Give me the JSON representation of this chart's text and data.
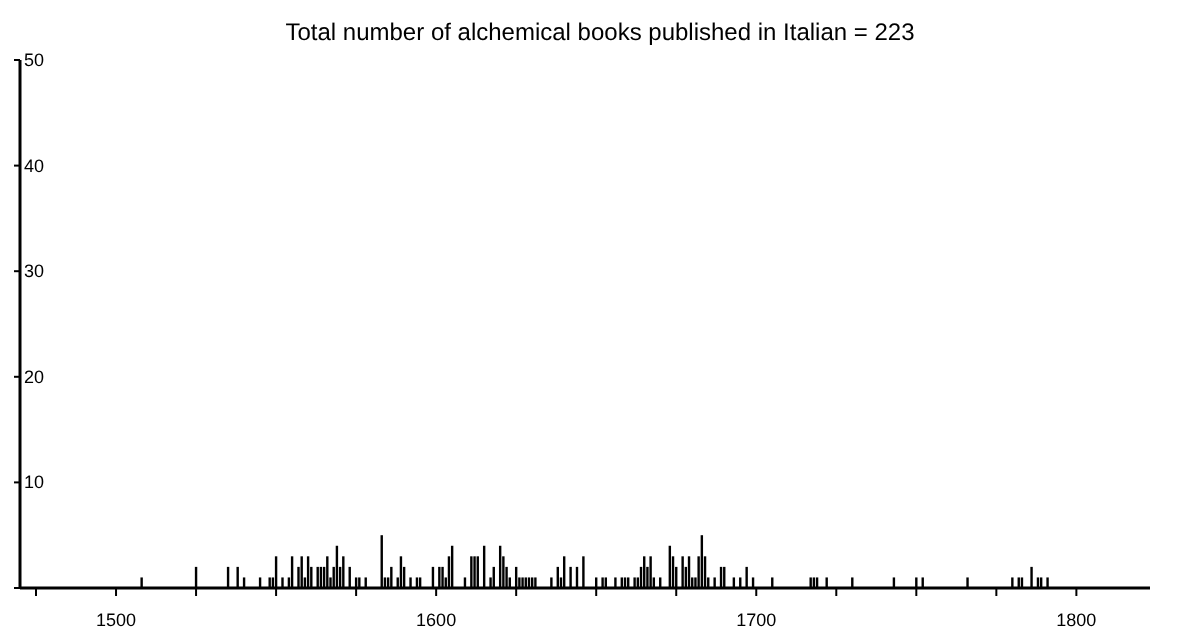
{
  "chart_data": {
    "type": "bar",
    "title": "Total number of alchemical books published in Italian  = 223",
    "x": [
      1508,
      1525,
      1535,
      1538,
      1540,
      1545,
      1548,
      1549,
      1550,
      1552,
      1554,
      1555,
      1557,
      1558,
      1559,
      1560,
      1561,
      1563,
      1564,
      1565,
      1566,
      1567,
      1568,
      1569,
      1570,
      1571,
      1573,
      1575,
      1576,
      1578,
      1583,
      1584,
      1585,
      1586,
      1588,
      1589,
      1590,
      1592,
      1594,
      1595,
      1599,
      1601,
      1602,
      1603,
      1604,
      1605,
      1609,
      1611,
      1612,
      1613,
      1615,
      1617,
      1618,
      1620,
      1621,
      1622,
      1623,
      1625,
      1626,
      1627,
      1628,
      1629,
      1630,
      1631,
      1636,
      1638,
      1639,
      1640,
      1642,
      1644,
      1646,
      1650,
      1652,
      1653,
      1656,
      1658,
      1659,
      1660,
      1662,
      1663,
      1664,
      1665,
      1666,
      1667,
      1668,
      1670,
      1673,
      1674,
      1675,
      1677,
      1678,
      1679,
      1680,
      1681,
      1682,
      1683,
      1684,
      1685,
      1687,
      1689,
      1690,
      1693,
      1695,
      1697,
      1699,
      1705,
      1717,
      1718,
      1719,
      1722,
      1730,
      1743,
      1750,
      1752,
      1766,
      1780,
      1782,
      1783,
      1786,
      1788,
      1789,
      1791
    ],
    "values": [
      1,
      2,
      2,
      2,
      1,
      1,
      1,
      1,
      3,
      1,
      1,
      3,
      2,
      3,
      1,
      3,
      2,
      2,
      2,
      2,
      3,
      1,
      2,
      4,
      2,
      3,
      2,
      1,
      1,
      1,
      5,
      1,
      1,
      2,
      1,
      3,
      2,
      1,
      1,
      1,
      2,
      2,
      2,
      1,
      3,
      4,
      1,
      3,
      3,
      3,
      4,
      1,
      2,
      4,
      3,
      2,
      1,
      2,
      1,
      1,
      1,
      1,
      1,
      1,
      1,
      2,
      1,
      3,
      2,
      2,
      3,
      1,
      1,
      1,
      1,
      1,
      1,
      1,
      1,
      1,
      2,
      3,
      2,
      3,
      1,
      1,
      4,
      3,
      2,
      3,
      2,
      3,
      1,
      1,
      3,
      5,
      3,
      1,
      1,
      2,
      2,
      1,
      1,
      2,
      1,
      1,
      1,
      1,
      1,
      1,
      1,
      1,
      1,
      1,
      1,
      1,
      1,
      1,
      2,
      1,
      1,
      1
    ],
    "color": "#000000",
    "xlim": [
      1470,
      1823
    ],
    "xticks": [
      {
        "value": 1475,
        "label": null
      },
      {
        "value": 1500,
        "label": "1500"
      },
      {
        "value": 1525,
        "label": null
      },
      {
        "value": 1550,
        "label": null
      },
      {
        "value": 1575,
        "label": null
      },
      {
        "value": 1600,
        "label": "1600"
      },
      {
        "value": 1625,
        "label": null
      },
      {
        "value": 1650,
        "label": null
      },
      {
        "value": 1675,
        "label": null
      },
      {
        "value": 1700,
        "label": "1700"
      },
      {
        "value": 1725,
        "label": null
      },
      {
        "value": 1750,
        "label": null
      },
      {
        "value": 1775,
        "label": null
      },
      {
        "value": 1800,
        "label": "1800"
      }
    ],
    "ylim": [
      0,
      50
    ],
    "yticks": [
      {
        "value": 0,
        "label": null
      },
      10,
      20,
      30,
      40,
      50
    ],
    "grid": false
  }
}
